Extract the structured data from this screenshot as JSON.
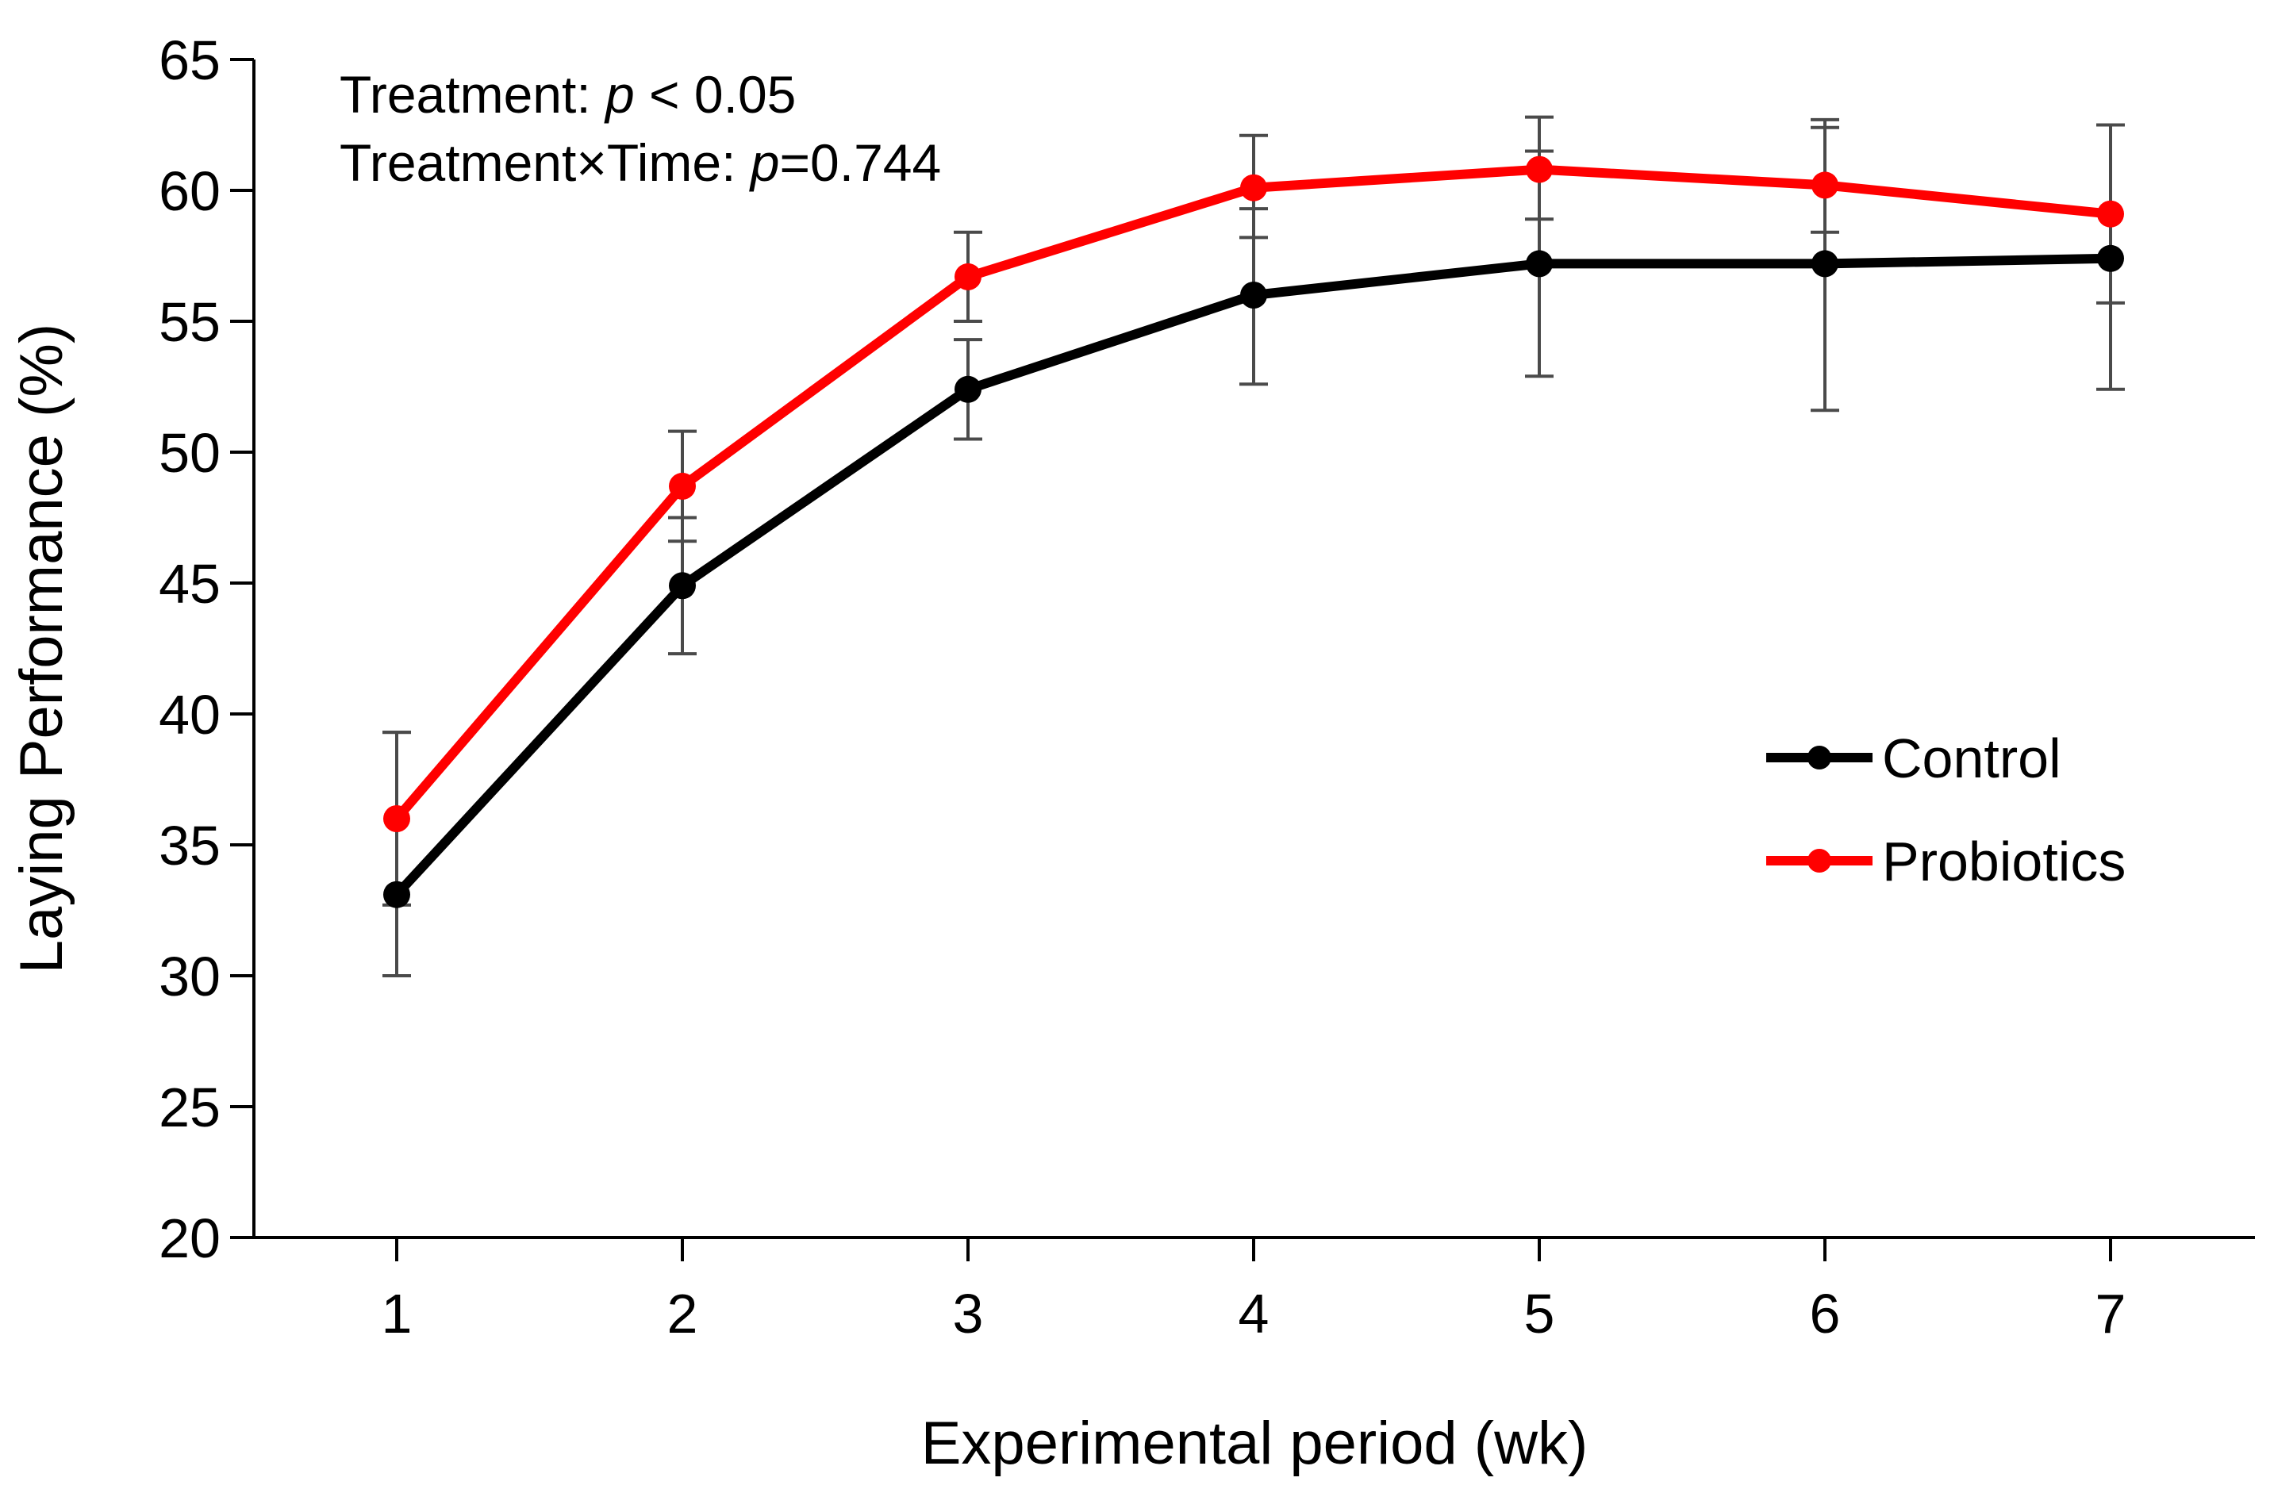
{
  "chart_data": {
    "type": "line",
    "xlabel": "Experimental period (wk)",
    "ylabel": "Laying Performance (%)",
    "x": [
      1,
      2,
      3,
      4,
      5,
      6,
      7
    ],
    "x_ticks": [
      "1",
      "2",
      "3",
      "4",
      "5",
      "6",
      "7"
    ],
    "ylim": [
      20,
      65
    ],
    "y_ticks": [
      20,
      25,
      30,
      35,
      40,
      45,
      50,
      55,
      60,
      65
    ],
    "y_tick_labels": [
      "20",
      "25",
      "30",
      "35",
      "40",
      "45",
      "50",
      "55",
      "60",
      "65"
    ],
    "grid": false,
    "legend_position": "right",
    "annotations": {
      "line1_prefix": "Treatment: ",
      "line1_p": "p",
      "line1_suffix": " < 0.05",
      "line2_prefix": "Treatment×Time: ",
      "line2_p": "p",
      "line2_suffix": "=0.744"
    },
    "series": [
      {
        "name": "Control",
        "color": "#000000",
        "values": [
          33.1,
          44.9,
          52.4,
          56.0,
          57.2,
          57.2,
          57.4
        ],
        "error_upper": [
          39.3,
          47.5,
          54.3,
          59.3,
          61.5,
          62.4,
          62.5
        ],
        "error_lower": [
          30.0,
          42.3,
          50.5,
          52.6,
          52.9,
          51.6,
          52.4
        ]
      },
      {
        "name": "Probiotics",
        "color": "#ff0000",
        "values": [
          36.0,
          48.7,
          56.7,
          60.1,
          60.8,
          60.2,
          59.1
        ],
        "error_upper": [
          39.3,
          50.8,
          58.4,
          62.1,
          62.8,
          62.7,
          62.5
        ],
        "error_lower": [
          32.7,
          46.6,
          55.0,
          58.2,
          58.9,
          58.4,
          55.7
        ]
      }
    ]
  }
}
